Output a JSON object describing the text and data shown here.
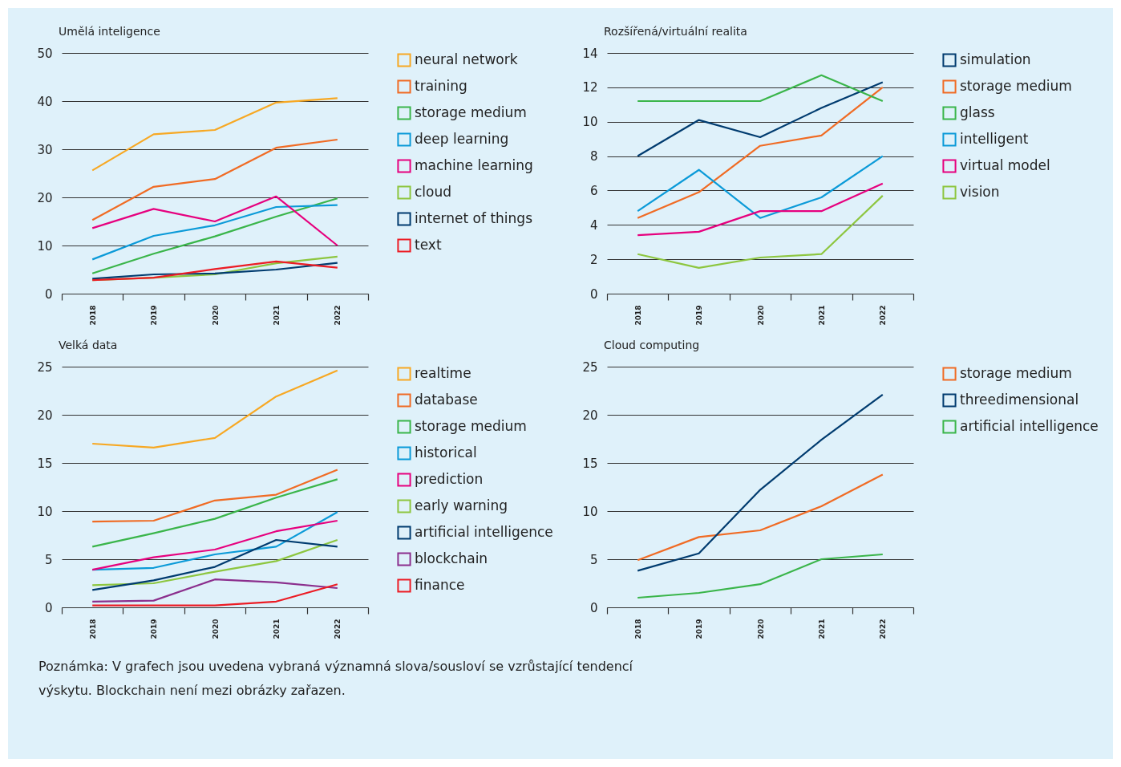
{
  "chart_data": [
    {
      "type": "line",
      "title": "Umělá inteligence",
      "categories": [
        "2018",
        "2019",
        "2020",
        "2021",
        "2022"
      ],
      "ylim": [
        0,
        50
      ],
      "yticks": [
        0,
        10,
        20,
        30,
        40,
        50
      ],
      "grid": "y",
      "legend": "right",
      "series": [
        {
          "name": "neural network",
          "color": "#f7a823",
          "values": [
            25.6,
            33.1,
            34.0,
            39.7,
            40.6
          ]
        },
        {
          "name": "training",
          "color": "#f06b24",
          "values": [
            15.3,
            22.2,
            23.8,
            30.3,
            32.0
          ]
        },
        {
          "name": "storage medium",
          "color": "#3ab54a",
          "values": [
            4.2,
            8.3,
            11.9,
            16.0,
            19.8
          ]
        },
        {
          "name": "deep learning",
          "color": "#0b9ad8",
          "values": [
            7.1,
            12.0,
            14.2,
            18.0,
            18.4
          ]
        },
        {
          "name": "machine learning",
          "color": "#e6007e",
          "values": [
            13.6,
            17.6,
            15.0,
            20.2,
            10.0
          ]
        },
        {
          "name": "cloud",
          "color": "#8dc63f",
          "values": [
            2.8,
            3.3,
            4.0,
            6.3,
            7.7
          ]
        },
        {
          "name": "internet of things",
          "color": "#003b6f",
          "values": [
            3.1,
            4.0,
            4.2,
            5.0,
            6.4
          ]
        },
        {
          "name": "text",
          "color": "#ec1c24",
          "values": [
            2.8,
            3.3,
            5.1,
            6.7,
            5.4
          ]
        }
      ]
    },
    {
      "type": "line",
      "title": "Rozšířená/virtuální realita",
      "categories": [
        "2018",
        "2019",
        "2020",
        "2021",
        "2022"
      ],
      "ylim": [
        0,
        14
      ],
      "yticks": [
        0,
        2,
        4,
        6,
        8,
        10,
        12,
        14
      ],
      "grid": "y",
      "legend": "right",
      "series": [
        {
          "name": "simulation",
          "color": "#003b6f",
          "values": [
            8.0,
            10.1,
            9.1,
            10.8,
            12.3
          ]
        },
        {
          "name": "storage medium",
          "color": "#f06b24",
          "values": [
            4.4,
            5.9,
            8.6,
            9.2,
            12.0
          ]
        },
        {
          "name": "glass",
          "color": "#3ab54a",
          "values": [
            11.2,
            11.2,
            11.2,
            12.7,
            11.2
          ]
        },
        {
          "name": "intelligent",
          "color": "#0b9ad8",
          "values": [
            4.8,
            7.2,
            4.4,
            5.6,
            8.0
          ]
        },
        {
          "name": "virtual model",
          "color": "#e6007e",
          "values": [
            3.4,
            3.6,
            4.8,
            4.8,
            6.4
          ]
        },
        {
          "name": "vision",
          "color": "#8dc63f",
          "values": [
            2.3,
            1.5,
            2.1,
            2.3,
            5.7
          ]
        }
      ]
    },
    {
      "type": "line",
      "title": "Velká data",
      "categories": [
        "2018",
        "2019",
        "2020",
        "2021",
        "2022"
      ],
      "ylim": [
        0,
        25
      ],
      "yticks": [
        0,
        5,
        10,
        15,
        20,
        25
      ],
      "grid": "y",
      "legend": "right",
      "series": [
        {
          "name": "realtime",
          "color": "#f7a823",
          "values": [
            17.0,
            16.6,
            17.6,
            21.9,
            24.6
          ]
        },
        {
          "name": "database",
          "color": "#f06b24",
          "values": [
            8.9,
            9.0,
            11.1,
            11.7,
            14.3
          ]
        },
        {
          "name": "storage medium",
          "color": "#3ab54a",
          "values": [
            6.3,
            7.7,
            9.2,
            11.4,
            13.3
          ]
        },
        {
          "name": "historical",
          "color": "#0b9ad8",
          "values": [
            3.9,
            4.1,
            5.5,
            6.3,
            9.9
          ]
        },
        {
          "name": "prediction",
          "color": "#e6007e",
          "values": [
            3.9,
            5.2,
            6.0,
            7.9,
            9.0
          ]
        },
        {
          "name": "early warning",
          "color": "#8dc63f",
          "values": [
            2.3,
            2.5,
            3.7,
            4.8,
            7.0
          ]
        },
        {
          "name": "artificial intelligence",
          "color": "#003b6f",
          "values": [
            1.8,
            2.8,
            4.2,
            7.0,
            6.3
          ]
        },
        {
          "name": "blockchain",
          "color": "#8b2f8d",
          "values": [
            0.6,
            0.7,
            2.9,
            2.6,
            2.0
          ]
        },
        {
          "name": "finance",
          "color": "#ec1c24",
          "values": [
            0.2,
            0.2,
            0.2,
            0.6,
            2.4
          ]
        }
      ]
    },
    {
      "type": "line",
      "title": "Cloud computing",
      "categories": [
        "2018",
        "2019",
        "2020",
        "2021",
        "2022"
      ],
      "ylim": [
        0,
        25
      ],
      "yticks": [
        0,
        5,
        10,
        15,
        20,
        25
      ],
      "grid": "y",
      "legend": "right",
      "annotations": [
        "Poznámka: V grafech jsou uvedena vybraná významná slova/sousloví se vzrůstající tendencí výskytu. Blockchain není mezi obrázky zařazen."
      ],
      "series": [
        {
          "name": "storage medium",
          "color": "#f06b24",
          "values": [
            4.9,
            7.3,
            8.0,
            10.5,
            13.8
          ]
        },
        {
          "name": "threedimensional",
          "color": "#003b6f",
          "values": [
            3.8,
            5.6,
            12.2,
            17.4,
            22.1
          ]
        },
        {
          "name": "artificial intelligence",
          "color": "#3ab54a",
          "values": [
            1.0,
            1.5,
            2.4,
            5.0,
            5.5
          ]
        }
      ]
    }
  ]
}
